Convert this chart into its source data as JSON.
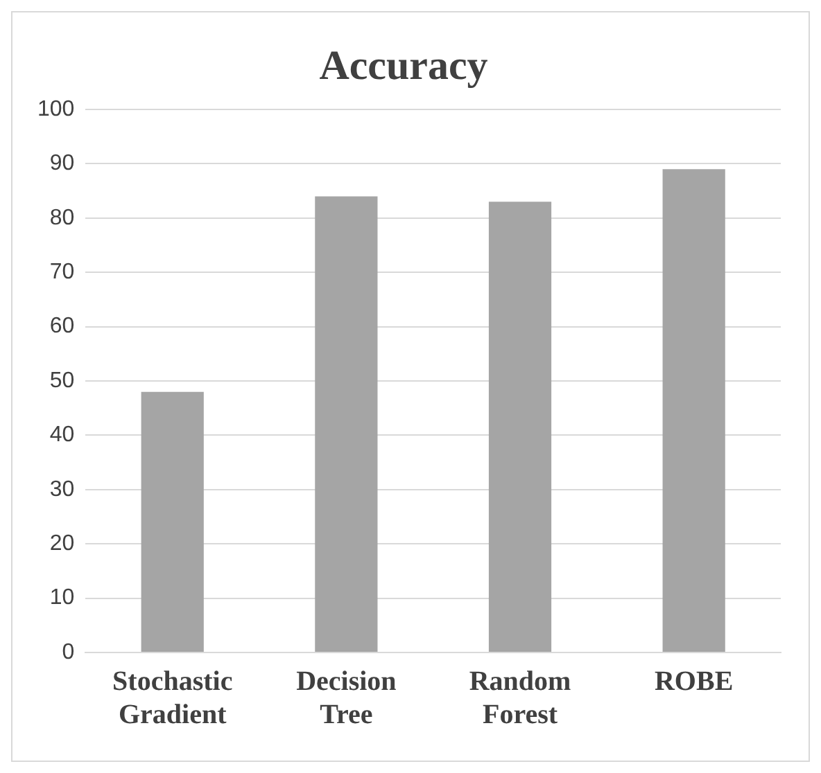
{
  "chart_data": {
    "type": "bar",
    "title": "Accuracy",
    "categories": [
      "Stochastic Gradient",
      "Decision Tree",
      "Random Forest",
      "ROBE"
    ],
    "values": [
      48,
      84,
      83,
      89
    ],
    "color": "#a5a5a5",
    "ylim": [
      0,
      100
    ],
    "yticks": [
      0,
      10,
      20,
      30,
      40,
      50,
      60,
      70,
      80,
      90,
      100
    ],
    "grid": "y"
  }
}
